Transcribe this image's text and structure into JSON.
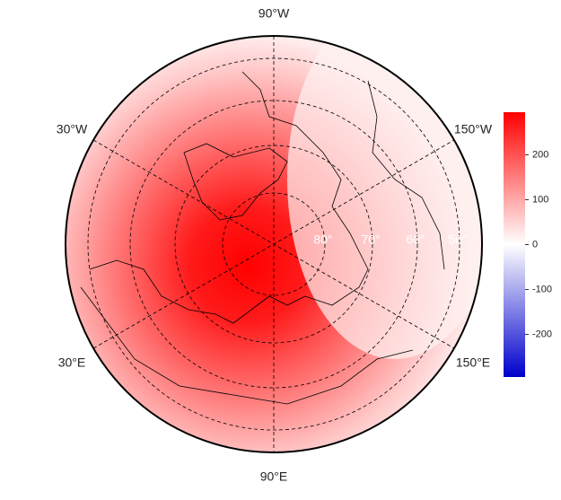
{
  "map": {
    "lon_labels": [
      "90°W",
      "30°W",
      "150°W",
      "30°E",
      "150°E",
      "90°E"
    ],
    "lat_labels": [
      "80°",
      "70°",
      "60°",
      "50°"
    ]
  },
  "colorbar": {
    "lim": [
      -295,
      295
    ],
    "ticks": [
      200,
      100,
      0,
      -100,
      -200
    ],
    "colors": [
      "#0000cc",
      "#ffffff",
      "#ff0000"
    ]
  }
}
